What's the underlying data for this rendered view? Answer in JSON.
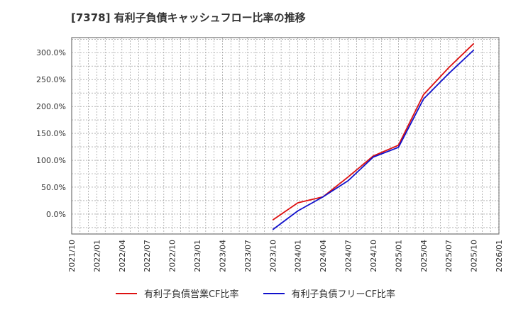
{
  "chart_data": {
    "type": "line",
    "title": "[7378]  有利子負債キャッシュフロー比率の推移",
    "xlabel": "",
    "ylabel": "",
    "ylim": [
      -37.0,
      328.0
    ],
    "yticks": [
      "0.0%",
      "50.0%",
      "100.0%",
      "150.0%",
      "200.0%",
      "250.0%",
      "300.0%"
    ],
    "ytick_values": [
      0,
      50,
      100,
      150,
      200,
      250,
      300
    ],
    "xticks": [
      "2021/10",
      "2022/01",
      "2022/04",
      "2022/07",
      "2022/10",
      "2023/01",
      "2023/04",
      "2023/07",
      "2023/10",
      "2024/01",
      "2024/04",
      "2024/07",
      "2024/10",
      "2025/01",
      "2025/04",
      "2025/07",
      "2025/10",
      "2026/01"
    ],
    "grid": true,
    "legend_position": "bottom",
    "series": [
      {
        "name": "有利子負債営業CF比率",
        "color": "#dd1111",
        "x": [
          "2023/10",
          "2024/01",
          "2024/04",
          "2024/07",
          "2024/10",
          "2025/01",
          "2025/04",
          "2025/07",
          "2025/10"
        ],
        "values": [
          -11.0,
          21.0,
          32.0,
          69.0,
          108.0,
          128.0,
          222.0,
          272.0,
          317.0
        ]
      },
      {
        "name": "有利子負債フリーCF比率",
        "color": "#1111cc",
        "x": [
          "2023/10",
          "2024/01",
          "2024/04",
          "2024/07",
          "2024/10",
          "2025/01",
          "2025/04",
          "2025/07",
          "2025/10"
        ],
        "values": [
          -29.0,
          6.0,
          32.0,
          62.0,
          106.0,
          124.0,
          214.0,
          261.0,
          305.0
        ]
      }
    ]
  }
}
